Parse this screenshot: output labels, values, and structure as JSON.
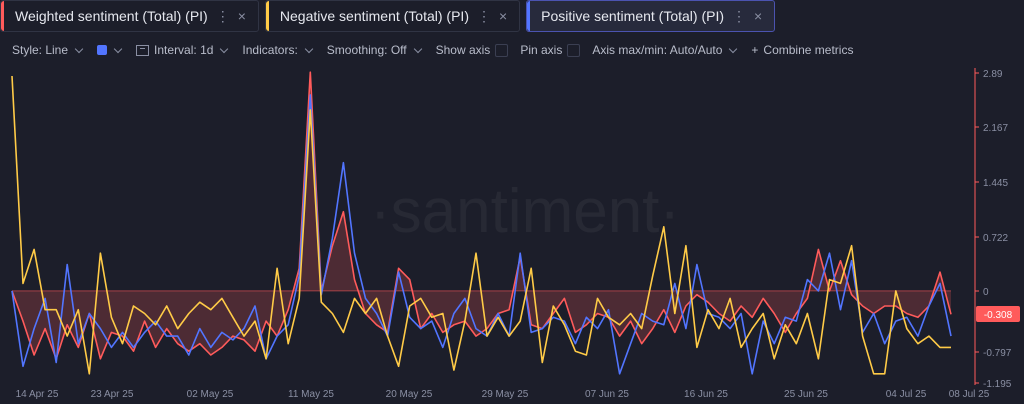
{
  "tabs": [
    {
      "label": "Weighted sentiment (Total) (PI)",
      "color": "#ff5b5b",
      "active": false
    },
    {
      "label": "Negative sentiment (Total) (PI)",
      "color": "#ffcb47",
      "active": false
    },
    {
      "label": "Positive sentiment (Total) (PI)",
      "color": "#5275ff",
      "active": true
    }
  ],
  "tab_icons": {
    "menu": "⋮",
    "close": "×"
  },
  "toolbar": {
    "style": "Style: Line",
    "interval": "Interval: 1d",
    "indicators": "Indicators:",
    "smoothing": "Smoothing: Off",
    "show_axis": "Show axis",
    "pin_axis": "Pin axis",
    "axis_maxmin": "Axis max/min: Auto/Auto",
    "combine": "Combine metrics",
    "plus": "+"
  },
  "watermark": "·santiment·",
  "chart_data": {
    "type": "line",
    "x_tick_labels": [
      "14 Apr 25",
      "23 Apr 25",
      "02 May 25",
      "11 May 25",
      "20 May 25",
      "29 May 25",
      "07 Jun 25",
      "16 Jun 25",
      "25 Jun 25",
      "04 Jul 25",
      "08 Jul 25"
    ],
    "x_start": "2025-04-13",
    "x_end": "2025-07-08",
    "y_tick_labels": [
      "2.89",
      "2.167",
      "1.445",
      "0.722",
      "0",
      "-0.797",
      "-1.195"
    ],
    "ylim": [
      -1.195,
      2.89
    ],
    "last_value_label": "-0.308",
    "series": [
      {
        "name": "Weighted sentiment (Total) (PI)",
        "color": "#ff5b5b",
        "area": true,
        "values": [
          0.0,
          -0.4,
          -0.85,
          -0.5,
          -0.9,
          -0.45,
          -0.75,
          -0.3,
          -0.9,
          -0.55,
          -0.6,
          -0.8,
          -0.4,
          -0.75,
          -0.5,
          -0.7,
          -0.8,
          -0.7,
          -0.85,
          -0.75,
          -0.6,
          -0.65,
          -0.8,
          -0.4,
          -0.6,
          -0.25,
          0.3,
          2.9,
          0.0,
          0.6,
          1.05,
          0.15,
          -0.3,
          -0.45,
          -0.55,
          0.3,
          0.15,
          -0.5,
          -0.3,
          -0.55,
          -0.45,
          -0.4,
          -0.6,
          -0.5,
          -0.3,
          -0.25,
          0.45,
          -0.45,
          -0.5,
          -0.3,
          -0.1,
          -0.55,
          -0.45,
          -0.3,
          -0.35,
          -0.6,
          -0.4,
          -0.7,
          -0.5,
          -0.25,
          -0.55,
          -0.2,
          -0.05,
          -0.15,
          -0.3,
          -0.4,
          -0.2,
          -0.35,
          -0.1,
          -0.3,
          -0.55,
          -0.3,
          -0.1,
          0.55,
          0.0,
          0.4,
          -0.05,
          -0.2,
          -0.3,
          -0.2,
          -0.2,
          -0.3,
          -0.35,
          -0.2,
          0.25,
          -0.31
        ]
      },
      {
        "name": "Negative sentiment (Total) (PI)",
        "color": "#ffcb47",
        "area": false,
        "values": [
          2.85,
          0.1,
          0.55,
          -0.25,
          -0.25,
          -0.6,
          -0.25,
          -1.1,
          0.5,
          -0.35,
          -0.7,
          -0.2,
          -0.3,
          -0.45,
          -0.2,
          -0.5,
          -0.3,
          -0.15,
          -0.25,
          -0.1,
          -0.35,
          -0.6,
          -0.4,
          -0.9,
          0.3,
          -0.7,
          -0.1,
          2.4,
          -0.15,
          -0.3,
          -0.55,
          -0.1,
          -0.3,
          -0.1,
          -0.6,
          -1.0,
          -0.2,
          -0.1,
          -0.35,
          -0.3,
          -1.05,
          -0.4,
          0.5,
          -0.6,
          -0.35,
          -0.6,
          -0.4,
          0.3,
          -0.95,
          -0.2,
          -0.45,
          -0.8,
          -0.85,
          -0.1,
          -0.35,
          -0.45,
          -0.3,
          -0.5,
          0.2,
          0.85,
          -0.3,
          0.6,
          -0.75,
          -0.25,
          -0.5,
          -0.1,
          -0.75,
          -0.5,
          -0.3,
          -0.9,
          -0.45,
          -0.7,
          -0.3,
          -0.9,
          0.15,
          0.1,
          0.6,
          -0.6,
          -1.1,
          -1.1,
          0.0,
          -0.5,
          -0.7,
          -0.6,
          -0.75,
          -0.75
        ]
      },
      {
        "name": "Positive sentiment (Total) (PI)",
        "color": "#5275ff",
        "area": false,
        "values": [
          0.0,
          -1.0,
          -0.5,
          -0.1,
          -0.95,
          0.35,
          -0.7,
          -0.3,
          -0.5,
          -0.75,
          -0.55,
          -0.75,
          -0.55,
          -0.4,
          -0.6,
          -0.6,
          -0.85,
          -0.5,
          -0.75,
          -0.55,
          -0.65,
          -0.5,
          -0.2,
          -0.9,
          -0.6,
          -0.45,
          0.2,
          2.6,
          -0.05,
          0.7,
          1.7,
          0.5,
          -0.1,
          -0.3,
          -0.6,
          0.25,
          -0.35,
          -0.5,
          -0.4,
          -0.75,
          -0.3,
          -0.1,
          -0.5,
          -0.6,
          -0.3,
          -0.6,
          0.5,
          -0.55,
          -0.5,
          -0.35,
          -0.4,
          -0.7,
          -0.35,
          -0.5,
          -0.25,
          -1.1,
          -0.7,
          -0.3,
          -0.4,
          -0.45,
          0.1,
          -0.5,
          0.35,
          -0.3,
          -0.35,
          -0.5,
          -0.3,
          -1.1,
          -0.4,
          -0.7,
          -0.35,
          -0.4,
          0.15,
          0.0,
          0.5,
          -0.25,
          0.4,
          -0.55,
          -0.3,
          -0.7,
          -0.4,
          -0.35,
          -0.6,
          -0.2,
          0.1,
          -0.6
        ]
      }
    ]
  }
}
